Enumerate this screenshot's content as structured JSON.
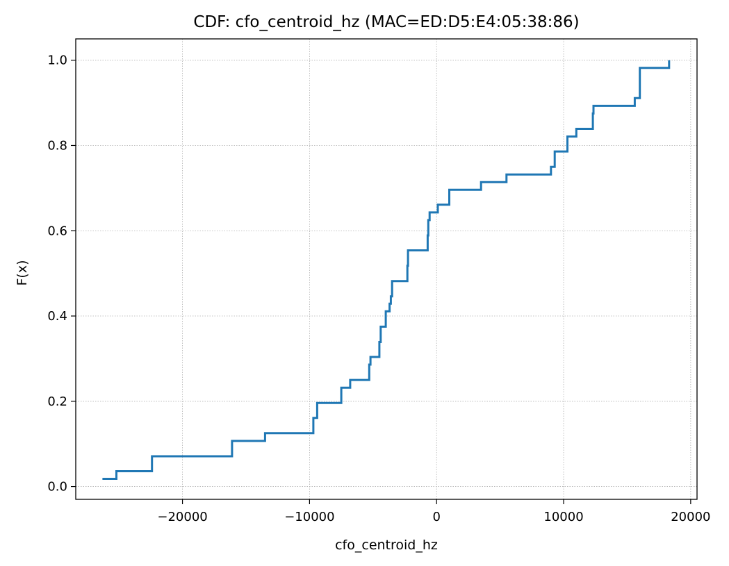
{
  "chart_data": {
    "type": "line",
    "step": "post",
    "title": "CDF: cfo_centroid_hz (MAC=ED:D5:E4:05:38:86)",
    "xlabel": "cfo_centroid_hz",
    "ylabel": "F(x)",
    "xlim": [
      -28400,
      20500
    ],
    "ylim": [
      -0.03,
      1.05
    ],
    "xticks": [
      -20000,
      -10000,
      0,
      10000,
      20000
    ],
    "xtick_labels": [
      "−20000",
      "−10000",
      "0",
      "10000",
      "20000"
    ],
    "yticks": [
      0.0,
      0.2,
      0.4,
      0.6,
      0.8,
      1.0
    ],
    "ytick_labels": [
      "0.0",
      "0.2",
      "0.4",
      "0.6",
      "0.8",
      "1.0"
    ],
    "grid": true,
    "color": "#1f77b4",
    "series": [
      {
        "x": [
          -26300,
          -25200,
          -22400,
          -16100,
          -13500,
          -9700,
          -9400,
          -7500,
          -6800,
          -5300,
          -5200,
          -4500,
          -4400,
          -4000,
          -3700,
          -3600,
          -3500,
          -2300,
          -2250,
          -700,
          -650,
          -550,
          100,
          1000,
          3500,
          5500,
          9000,
          9300,
          10300,
          11000,
          12300,
          12350,
          15600,
          16000,
          18300
        ],
        "y": [
          0.018,
          0.036,
          0.071,
          0.107,
          0.125,
          0.161,
          0.196,
          0.232,
          0.25,
          0.286,
          0.304,
          0.339,
          0.375,
          0.411,
          0.429,
          0.446,
          0.482,
          0.518,
          0.554,
          0.589,
          0.625,
          0.643,
          0.661,
          0.696,
          0.714,
          0.732,
          0.75,
          0.786,
          0.821,
          0.839,
          0.875,
          0.893,
          0.911,
          0.982,
          1.0
        ]
      }
    ]
  }
}
